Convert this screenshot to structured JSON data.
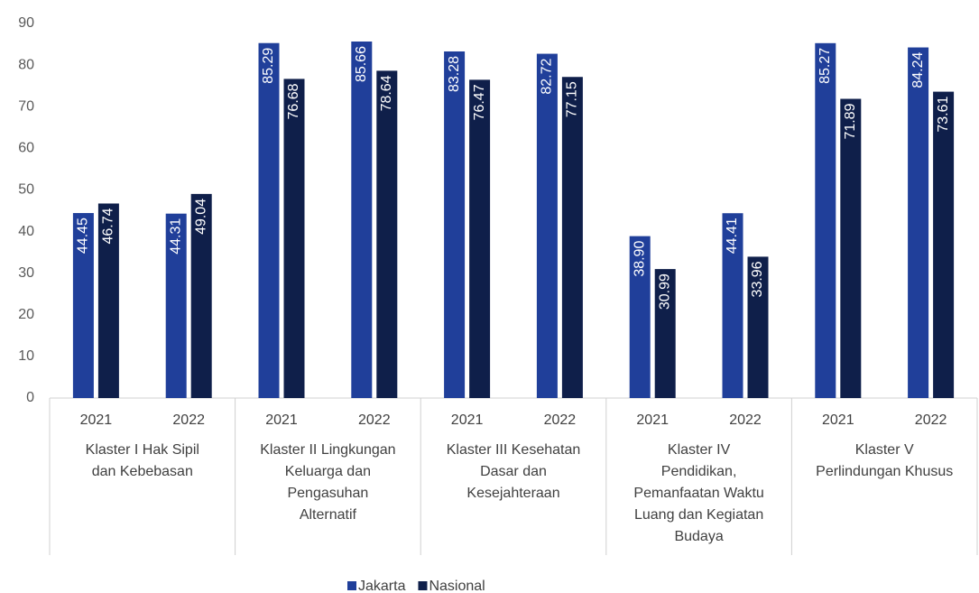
{
  "chart_data": {
    "type": "bar",
    "groups": [
      {
        "label": [
          "Klaster I Hak Sipil",
          "dan Kebebasan"
        ],
        "categories": [
          "2021",
          "2022"
        ]
      },
      {
        "label": [
          "Klaster II Lingkungan",
          "Keluarga dan",
          "Pengasuhan",
          "Alternatif"
        ],
        "categories": [
          "2021",
          "2022"
        ]
      },
      {
        "label": [
          "Klaster III Kesehatan",
          "Dasar dan",
          "Kesejahteraan"
        ],
        "categories": [
          "2021",
          "2022"
        ]
      },
      {
        "label": [
          "Klaster IV",
          "Pendidikan,",
          "Pemanfaatan Waktu",
          "Luang dan Kegiatan",
          "Budaya"
        ],
        "categories": [
          "2021",
          "2022"
        ]
      },
      {
        "label": [
          "Klaster V",
          "Perlindungan Khusus"
        ],
        "categories": [
          "2021",
          "2022"
        ]
      }
    ],
    "series": [
      {
        "name": "Jakarta",
        "color": "#203f9a",
        "values": [
          44.45,
          44.31,
          85.29,
          85.66,
          83.28,
          82.72,
          38.9,
          44.41,
          85.27,
          84.24
        ],
        "value_labels": [
          "44.45",
          "44.31",
          "85.29",
          "85.66",
          "83.28",
          "82.72",
          "38.90",
          "44.41",
          "85.27",
          "84.24"
        ]
      },
      {
        "name": "Nasional",
        "color": "#0f1f4a",
        "values": [
          46.74,
          49.04,
          76.68,
          78.64,
          76.47,
          77.15,
          30.99,
          33.96,
          71.89,
          73.61
        ],
        "value_labels": [
          "46.74",
          "49.04",
          "76.68",
          "78.64",
          "76.47",
          "77.15",
          "30.99",
          "33.96",
          "71.89",
          "73.61"
        ]
      }
    ],
    "ylim": [
      0,
      90
    ],
    "yticks": [
      0,
      10,
      20,
      30,
      40,
      50,
      60,
      70,
      80,
      90
    ],
    "legend": "bottom"
  }
}
